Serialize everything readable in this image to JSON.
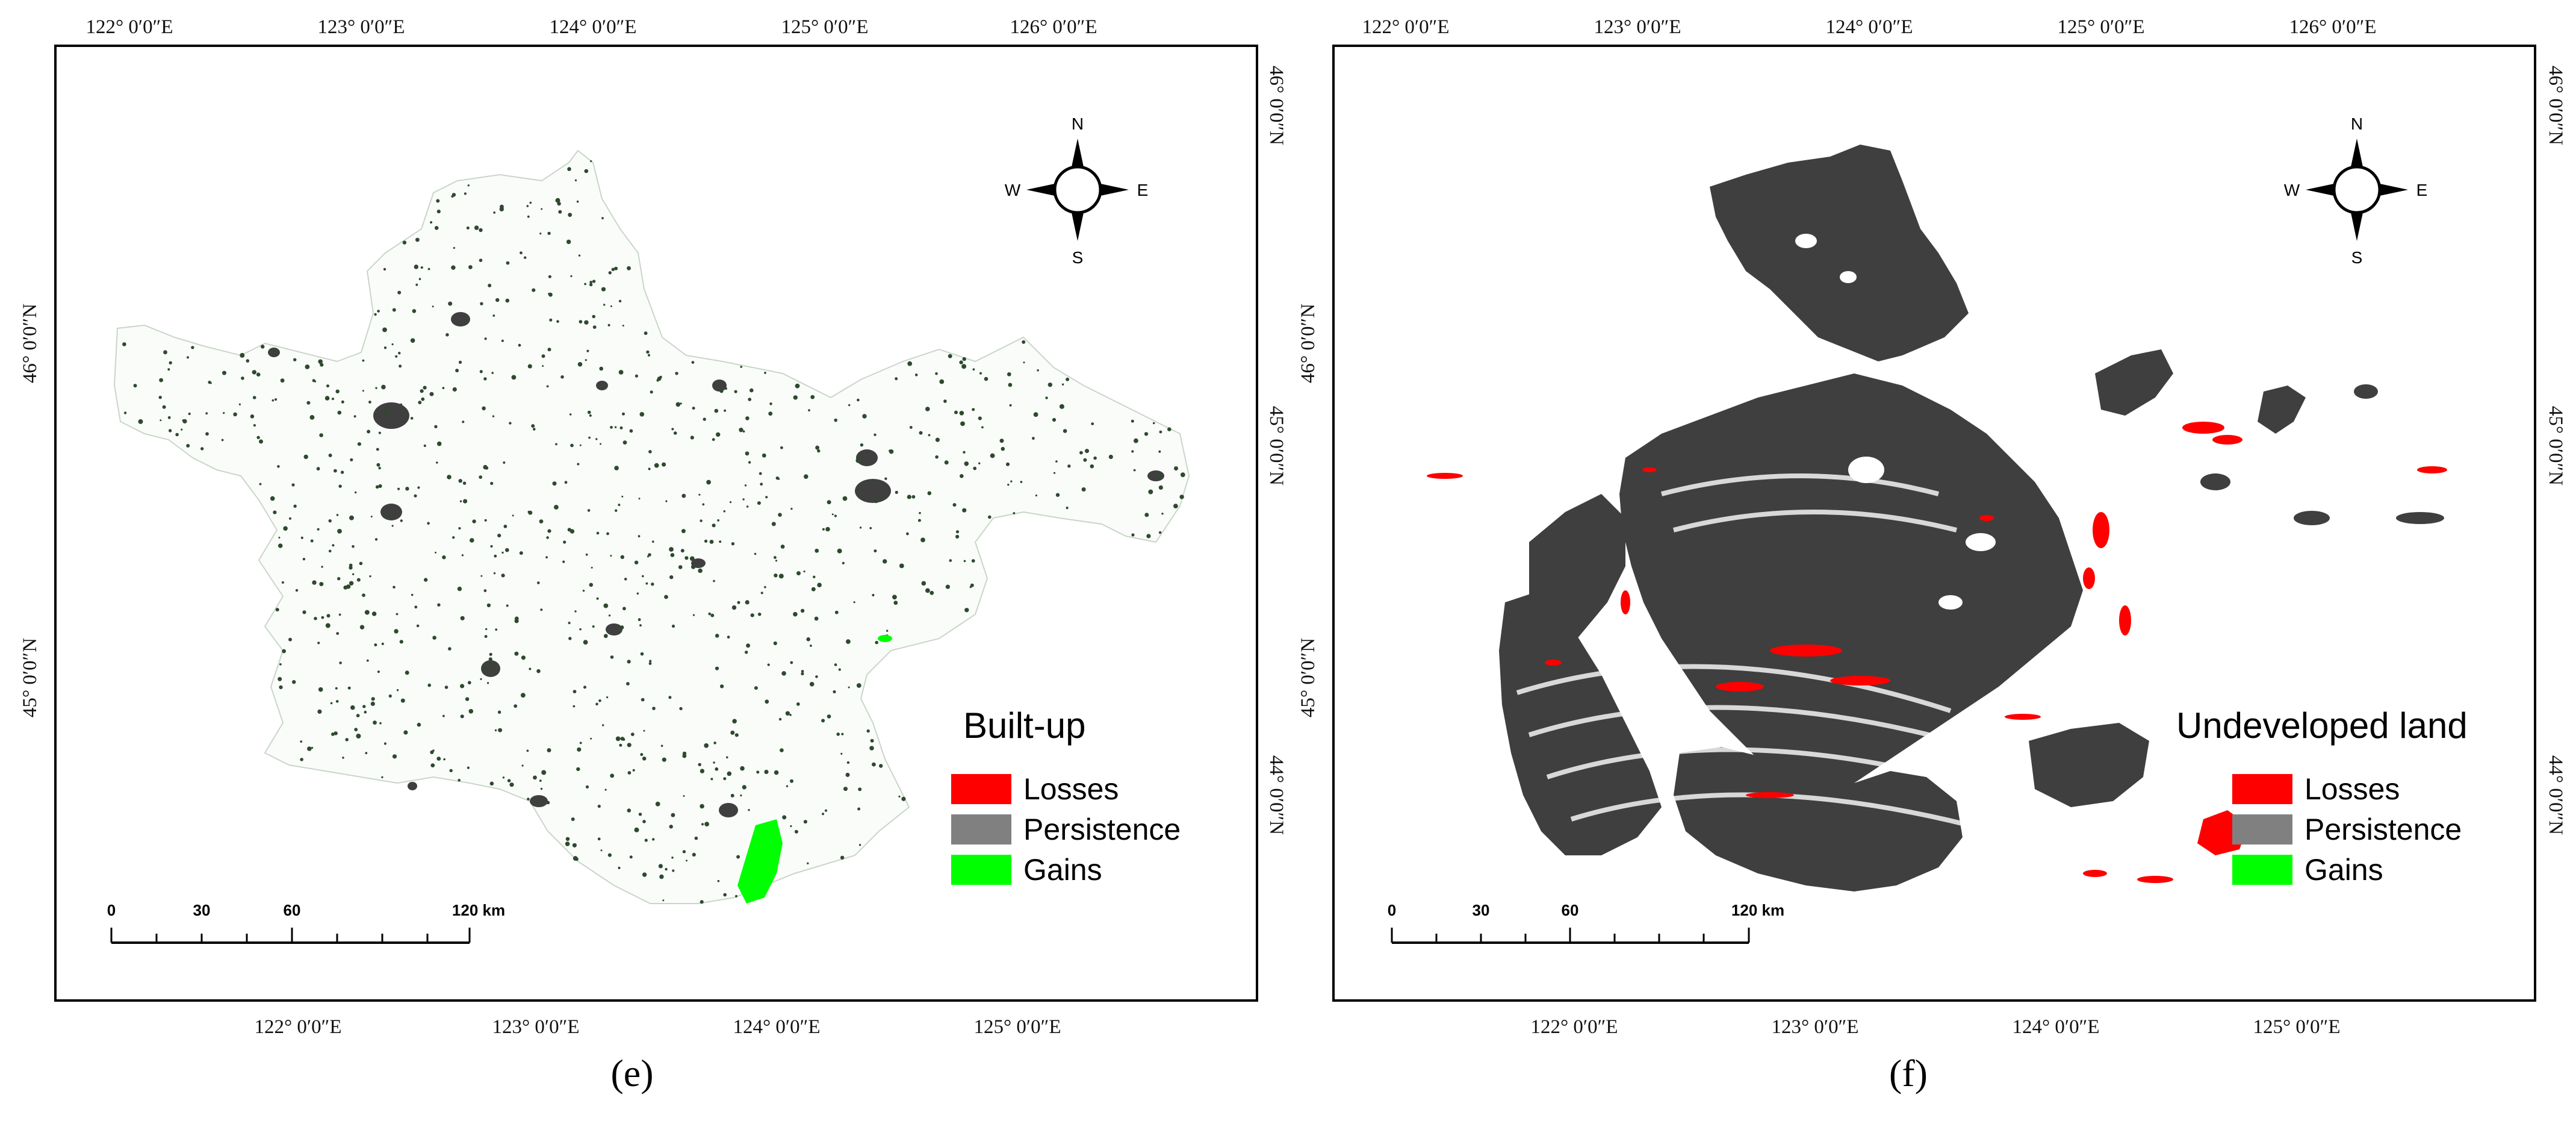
{
  "panels": [
    {
      "id": "e",
      "caption": "(e)",
      "legend": {
        "title": "Built-up",
        "items": [
          {
            "label": "Losses",
            "color": "#ff0000"
          },
          {
            "label": "Persistence",
            "color": "#808080"
          },
          {
            "label": "Gains",
            "color": "#00ff00"
          }
        ]
      },
      "top_lon": [
        "122° 0′0″E",
        "123° 0′0″E",
        "124° 0′0″E",
        "125° 0′0″E",
        "126° 0′0″E"
      ],
      "bottom_lon": [
        "122° 0′0″E",
        "123° 0′0″E",
        "124° 0′0″E",
        "125° 0′0″E"
      ],
      "left_lat": [
        "46° 0′0″N",
        "45° 0′0″N"
      ],
      "right_lat": [
        "46° 0′0″N",
        "45° 0′0″N",
        "44° 0′0″N"
      ],
      "scale": {
        "ticks": [
          "0",
          "30",
          "60",
          "120 km"
        ]
      },
      "compass": {
        "n": "N",
        "s": "S",
        "e": "E",
        "w": "W"
      }
    },
    {
      "id": "f",
      "caption": "(f)",
      "legend": {
        "title": "Undeveloped land",
        "items": [
          {
            "label": "Losses",
            "color": "#ff0000"
          },
          {
            "label": "Persistence",
            "color": "#808080"
          },
          {
            "label": "Gains",
            "color": "#00ff00"
          }
        ]
      },
      "top_lon": [
        "122° 0′0″E",
        "123° 0′0″E",
        "124° 0′0″E",
        "125° 0′0″E",
        "126° 0′0″E"
      ],
      "bottom_lon": [
        "122° 0′0″E",
        "123° 0′0″E",
        "124° 0′0″E",
        "125° 0′0″E"
      ],
      "left_lat": [
        "46° 0′0″N",
        "45° 0′0″N"
      ],
      "right_lat": [
        "46° 0′0″N",
        "45° 0′0″N",
        "44° 0′0″N"
      ],
      "scale": {
        "ticks": [
          "0",
          "30",
          "60",
          "120 km"
        ]
      },
      "compass": {
        "n": "N",
        "s": "S",
        "e": "E",
        "w": "W"
      }
    }
  ],
  "colors": {
    "persistence_dark": "#3f3f3f",
    "persistence_light": "#8a9a8a",
    "losses": "#ff0000",
    "gains": "#00ff00"
  }
}
